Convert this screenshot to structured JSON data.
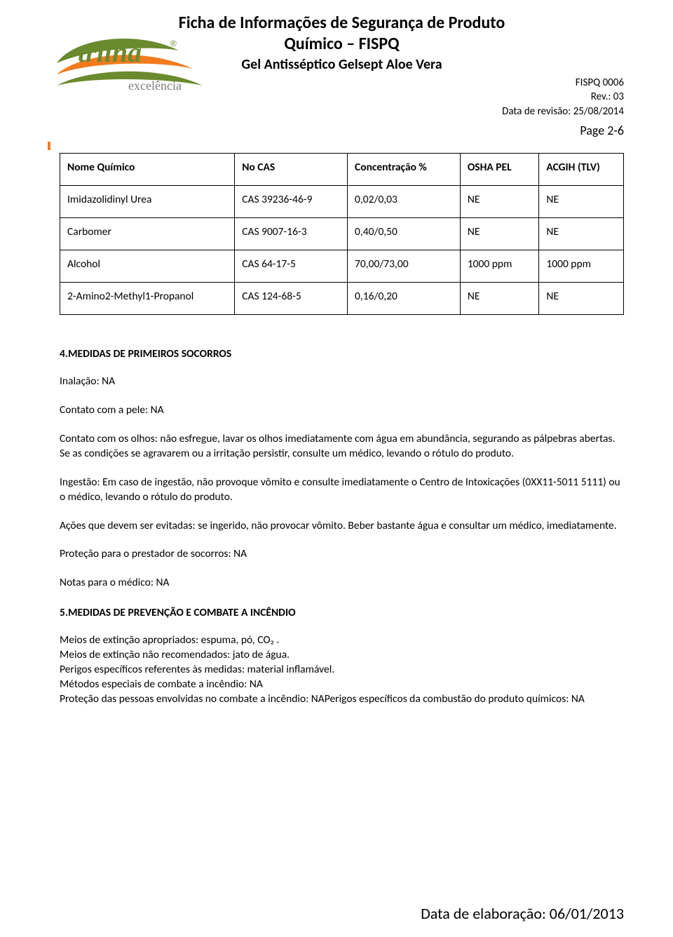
{
  "header": {
    "title_line1": "Ficha de Informações de Segurança de Produto",
    "title_line2": "Químico – FISPQ",
    "subtitle": "Gel Antisséptico Gelsept Aloe Vera",
    "doc_code": "FISPQ 0006",
    "revision": "Rev.: 03",
    "revision_date": "Data de revisão: 25/08/2014",
    "page": "Page 2-6",
    "logo_main": "trilha",
    "logo_mark": "®",
    "logo_sub": "excelência",
    "logo_colors": {
      "green": "#6a8a2e",
      "orange": "#f27b1e",
      "grey": "#7a7a7a"
    }
  },
  "table": {
    "columns": [
      "Nome Químico",
      "No CAS",
      "Concentração %",
      "OSHA PEL",
      "ACGIH (TLV)"
    ],
    "col_widths": [
      "31%",
      "20%",
      "20%",
      "14%",
      "15%"
    ],
    "rows": [
      [
        "Imidazolidinyl Urea",
        "CAS 39236-46-9",
        "0,02/0,03",
        "NE",
        "NE"
      ],
      [
        "Carbomer",
        "CAS 9007-16-3",
        "0,40/0,50",
        "NE",
        "NE"
      ],
      [
        "Alcohol",
        "CAS 64-17-5",
        "70,00/73,00",
        "1000 ppm",
        "1000 ppm"
      ],
      [
        "2-Amino2-Methyl1-Propanol",
        "CAS 124-68-5",
        "0,16/0,20",
        "NE",
        "NE"
      ]
    ]
  },
  "section4": {
    "heading": "4.MEDIDAS DE PRIMEIROS SOCORROS",
    "inhalation": "Inalação: NA",
    "skin": "Contato com a pele: NA",
    "eyes": "Contato com os olhos: não esfregue, lavar os olhos imediatamente com água em abundância, segurando as pálpebras abertas. Se as condições se agravarem ou a irritação persistir, consulte um médico, levando o rótulo do produto.",
    "ingestion": "Ingestão: Em caso de ingestão, não provoque vômito e consulte imediatamente o Centro de Intoxicações (0XX11-5011 5111) ou o médico, levando o rótulo do produto.",
    "avoid": "Ações que devem ser evitadas: se ingerido, não provocar vômito. Beber bastante água e consultar um médico, imediatamente.",
    "rescuer": "Proteção para o prestador de socorros: NA",
    "physician": "Notas para o médico: NA"
  },
  "section5": {
    "heading": "5.MEDIDAS DE PREVENÇÃO E COMBATE A INCÊNDIO",
    "l1": "Meios de extinção apropriados: espuma, pó, CO₂ .",
    "l2": "Meios de extinção não recomendados: jato de água.",
    "l3": "Perigos específicos referentes às medidas: material inflamável.",
    "l4": "Métodos especiais de combate a incêndio: NA",
    "l5": "Proteção das pessoas envolvidas no combate a incêndio: NAPerigos específicos da combustão do produto químicos: NA"
  },
  "footer": {
    "elaboration_date": "Data de elaboração: 06/01/2013"
  }
}
